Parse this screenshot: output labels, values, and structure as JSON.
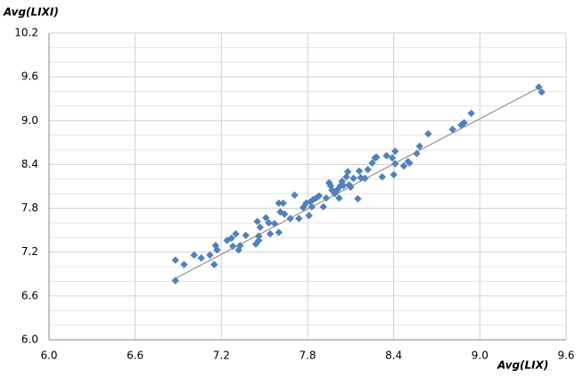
{
  "chart_data": {
    "type": "scatter",
    "y_axis_label": "Avg(LIXI)",
    "x_axis_label": "Avg(LIX)",
    "color": "#4f81bd",
    "x": [
      6.88,
      6.88,
      6.94,
      7.01,
      7.06,
      7.12,
      7.15,
      7.16,
      7.17,
      7.24,
      7.27,
      7.3,
      7.28,
      7.32,
      7.33,
      7.37,
      7.44,
      7.46,
      7.45,
      7.47,
      7.46,
      7.51,
      7.53,
      7.54,
      7.57,
      7.6,
      7.6,
      7.63,
      7.61,
      7.64,
      7.68,
      7.71,
      7.74,
      7.77,
      7.79,
      7.81,
      7.82,
      7.83,
      7.84,
      7.86,
      7.88,
      7.91,
      7.93,
      7.95,
      7.96,
      7.97,
      7.99,
      8.01,
      8.02,
      8.03,
      8.04,
      8.05,
      8.07,
      8.08,
      8.09,
      8.1,
      8.12,
      8.15,
      8.16,
      8.17,
      8.2,
      8.22,
      8.25,
      8.27,
      8.28,
      8.32,
      8.35,
      8.39,
      8.4,
      8.41,
      8.41,
      8.47,
      8.5,
      8.51,
      8.56,
      8.58,
      8.64,
      8.81,
      8.87,
      8.89,
      8.94,
      9.41,
      9.43
    ],
    "y": [
      6.81,
      7.09,
      7.03,
      7.16,
      7.12,
      7.16,
      7.03,
      7.29,
      7.23,
      7.36,
      7.39,
      7.45,
      7.28,
      7.23,
      7.29,
      7.43,
      7.31,
      7.36,
      7.62,
      7.54,
      7.42,
      7.67,
      7.6,
      7.45,
      7.59,
      7.47,
      7.87,
      7.87,
      7.75,
      7.72,
      7.66,
      7.98,
      7.66,
      7.81,
      7.87,
      7.7,
      7.89,
      7.82,
      7.92,
      7.94,
      7.97,
      7.82,
      7.94,
      8.15,
      8.11,
      8.05,
      8.0,
      8.06,
      7.94,
      8.11,
      8.17,
      8.11,
      8.23,
      8.3,
      8.12,
      8.09,
      8.21,
      7.93,
      8.31,
      8.22,
      8.21,
      8.33,
      8.42,
      8.49,
      8.5,
      8.23,
      8.52,
      8.49,
      8.26,
      8.41,
      8.58,
      8.38,
      8.44,
      8.42,
      8.55,
      8.65,
      8.82,
      8.88,
      8.94,
      8.97,
      9.1,
      9.46,
      9.39
    ],
    "trendline": {
      "x": [
        6.88,
        9.43
      ],
      "y": [
        6.84,
        9.47
      ],
      "color": "#808080"
    },
    "xlim": [
      6.0,
      9.6
    ],
    "ylim": [
      6.0,
      10.2
    ],
    "xticks": [
      {
        "value": 6.0,
        "label": "6.0"
      },
      6.6,
      7.2,
      7.8,
      8.4,
      {
        "value": 9.0,
        "label": "9.0"
      },
      9.6
    ],
    "yticks": [
      {
        "value": 6.0,
        "label": "6.0"
      },
      6.6,
      7.2,
      7.8,
      8.4,
      {
        "value": 9.0,
        "label": "9.0"
      },
      9.6,
      10.2
    ],
    "y_minor_ticks": [
      6.2,
      6.4,
      6.8,
      7.0,
      7.4,
      7.6,
      8.0,
      8.2,
      8.6,
      8.8,
      9.2,
      9.4,
      9.8,
      10.0
    ],
    "grid": true
  }
}
